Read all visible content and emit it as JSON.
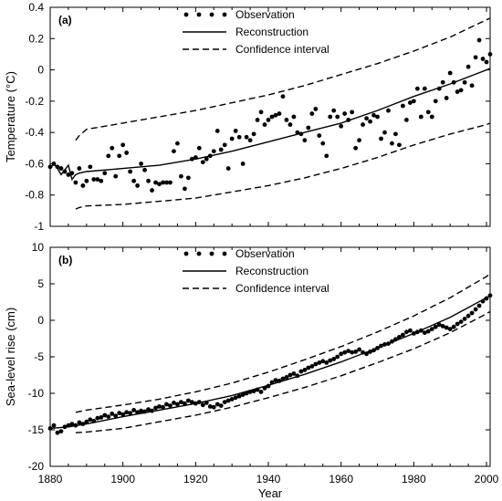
{
  "chart_data": [
    {
      "panel": "(a)",
      "type": "line",
      "ylabel": "Temperature (°C)",
      "xlabel": "",
      "xlim": [
        1880,
        2001
      ],
      "ylim": [
        -1,
        0.4
      ],
      "x_ticks": [
        1880,
        1900,
        1920,
        1940,
        1960,
        1980,
        2000
      ],
      "y_ticks": [
        -1,
        -0.8,
        -0.6,
        -0.4,
        -0.2,
        0,
        0.2,
        0.4
      ],
      "y_tick_labels": [
        "-1",
        "-0.8",
        "-0.6",
        "-0.4",
        "-0.2",
        "0",
        "0.2",
        "0.4"
      ],
      "grid": false,
      "legend_position": "top-center",
      "legend": {
        "observation": "Observation",
        "reconstruction": "Reconstruction",
        "confidence": "Confidence interval"
      },
      "series": [
        {
          "name": "Observation",
          "style": "dots",
          "x": [
            1880,
            1881,
            1882,
            1883,
            1884,
            1885,
            1886,
            1887,
            1888,
            1889,
            1890,
            1891,
            1892,
            1893,
            1894,
            1895,
            1896,
            1897,
            1898,
            1899,
            1900,
            1901,
            1902,
            1903,
            1904,
            1905,
            1906,
            1907,
            1908,
            1909,
            1910,
            1911,
            1912,
            1913,
            1914,
            1915,
            1916,
            1917,
            1918,
            1919,
            1920,
            1921,
            1922,
            1923,
            1924,
            1925,
            1926,
            1927,
            1928,
            1929,
            1930,
            1931,
            1932,
            1933,
            1934,
            1935,
            1936,
            1937,
            1938,
            1939,
            1940,
            1941,
            1942,
            1943,
            1944,
            1945,
            1946,
            1947,
            1948,
            1949,
            1950,
            1951,
            1952,
            1953,
            1954,
            1955,
            1956,
            1957,
            1958,
            1959,
            1960,
            1961,
            1962,
            1963,
            1964,
            1965,
            1966,
            1967,
            1968,
            1969,
            1970,
            1971,
            1972,
            1973,
            1974,
            1975,
            1976,
            1977,
            1978,
            1979,
            1980,
            1981,
            1982,
            1983,
            1984,
            1985,
            1986,
            1987,
            1988,
            1989,
            1990,
            1991,
            1992,
            1993,
            1994,
            1995,
            1996,
            1997,
            1998,
            1999,
            2000,
            2001
          ],
          "y": [
            -0.62,
            -0.6,
            -0.62,
            -0.63,
            -0.65,
            -0.67,
            -0.66,
            -0.72,
            -0.63,
            -0.74,
            -0.71,
            -0.62,
            -0.7,
            -0.7,
            -0.71,
            -0.66,
            -0.55,
            -0.5,
            -0.68,
            -0.55,
            -0.48,
            -0.53,
            -0.65,
            -0.71,
            -0.74,
            -0.6,
            -0.64,
            -0.71,
            -0.77,
            -0.72,
            -0.73,
            -0.72,
            -0.72,
            -0.72,
            -0.52,
            -0.47,
            -0.68,
            -0.76,
            -0.69,
            -0.57,
            -0.56,
            -0.5,
            -0.59,
            -0.57,
            -0.55,
            -0.52,
            -0.39,
            -0.51,
            -0.48,
            -0.63,
            -0.44,
            -0.39,
            -0.43,
            -0.6,
            -0.43,
            -0.45,
            -0.41,
            -0.32,
            -0.27,
            -0.35,
            -0.32,
            -0.3,
            -0.29,
            -0.28,
            -0.17,
            -0.32,
            -0.35,
            -0.3,
            -0.4,
            -0.41,
            -0.45,
            -0.37,
            -0.28,
            -0.25,
            -0.42,
            -0.47,
            -0.55,
            -0.3,
            -0.26,
            -0.3,
            -0.36,
            -0.28,
            -0.32,
            -0.27,
            -0.5,
            -0.45,
            -0.35,
            -0.31,
            -0.33,
            -0.29,
            -0.3,
            -0.44,
            -0.4,
            -0.26,
            -0.47,
            -0.41,
            -0.48,
            -0.23,
            -0.32,
            -0.21,
            -0.2,
            -0.12,
            -0.3,
            -0.12,
            -0.27,
            -0.3,
            -0.2,
            -0.12,
            -0.08,
            -0.18,
            -0.02,
            -0.08,
            -0.14,
            -0.13,
            -0.08,
            0.02,
            -0.1,
            0.08,
            0.19,
            0.07,
            0.05,
            0.1
          ]
        },
        {
          "name": "Reconstruction",
          "style": "solid",
          "x": [
            1880,
            1881,
            1882,
            1883,
            1884,
            1885,
            1886,
            1887,
            1888,
            1890,
            1900,
            1910,
            1920,
            1930,
            1940,
            1950,
            1960,
            1970,
            1980,
            1990,
            2000,
            2001
          ],
          "y": [
            -0.63,
            -0.6,
            -0.63,
            -0.67,
            -0.64,
            -0.61,
            -0.7,
            -0.67,
            -0.66,
            -0.65,
            -0.63,
            -0.61,
            -0.57,
            -0.52,
            -0.46,
            -0.4,
            -0.34,
            -0.26,
            -0.17,
            -0.09,
            0.0,
            0.01
          ]
        },
        {
          "name": "Confidence interval (upper)",
          "style": "dashed",
          "x": [
            1887,
            1888,
            1890,
            1900,
            1910,
            1920,
            1930,
            1940,
            1950,
            1960,
            1970,
            1980,
            1990,
            2000,
            2001
          ],
          "y": [
            -0.45,
            -0.42,
            -0.38,
            -0.34,
            -0.3,
            -0.26,
            -0.21,
            -0.16,
            -0.1,
            -0.03,
            0.04,
            0.12,
            0.21,
            0.32,
            0.33
          ]
        },
        {
          "name": "Confidence interval (lower)",
          "style": "dashed",
          "x": [
            1887,
            1888,
            1890,
            1900,
            1910,
            1920,
            1930,
            1940,
            1950,
            1960,
            1970,
            1980,
            1990,
            2000,
            2001
          ],
          "y": [
            -0.89,
            -0.88,
            -0.87,
            -0.86,
            -0.84,
            -0.82,
            -0.78,
            -0.74,
            -0.69,
            -0.63,
            -0.56,
            -0.48,
            -0.41,
            -0.35,
            -0.34
          ]
        }
      ]
    },
    {
      "panel": "(b)",
      "type": "line",
      "ylabel": "Sea-level rise (cm)",
      "xlabel": "Year",
      "xlim": [
        1880,
        2001
      ],
      "ylim": [
        -20,
        10
      ],
      "x_ticks": [
        1880,
        1900,
        1920,
        1940,
        1960,
        1980,
        2000
      ],
      "y_ticks": [
        -20,
        -15,
        -10,
        -5,
        0,
        5,
        10
      ],
      "y_tick_labels": [
        "-20",
        "-15",
        "-10",
        "-5",
        "0",
        "5",
        "10"
      ],
      "grid": false,
      "legend_position": "top-center",
      "legend": {
        "observation": "Observation",
        "reconstruction": "Reconstruction",
        "confidence": "Confidence interval"
      },
      "series": [
        {
          "name": "Observation",
          "style": "dots",
          "x": [
            1880,
            1881,
            1882,
            1883,
            1884,
            1885,
            1886,
            1887,
            1888,
            1889,
            1890,
            1891,
            1892,
            1893,
            1894,
            1895,
            1896,
            1897,
            1898,
            1899,
            1900,
            1901,
            1902,
            1903,
            1904,
            1905,
            1906,
            1907,
            1908,
            1909,
            1910,
            1911,
            1912,
            1913,
            1914,
            1915,
            1916,
            1917,
            1918,
            1919,
            1920,
            1921,
            1922,
            1923,
            1924,
            1925,
            1926,
            1927,
            1928,
            1929,
            1930,
            1931,
            1932,
            1933,
            1934,
            1935,
            1936,
            1937,
            1938,
            1939,
            1940,
            1941,
            1942,
            1943,
            1944,
            1945,
            1946,
            1947,
            1948,
            1949,
            1950,
            1951,
            1952,
            1953,
            1954,
            1955,
            1956,
            1957,
            1958,
            1959,
            1960,
            1961,
            1962,
            1963,
            1964,
            1965,
            1966,
            1967,
            1968,
            1969,
            1970,
            1971,
            1972,
            1973,
            1974,
            1975,
            1976,
            1977,
            1978,
            1979,
            1980,
            1981,
            1982,
            1983,
            1984,
            1985,
            1986,
            1987,
            1988,
            1989,
            1990,
            1991,
            1992,
            1993,
            1994,
            1995,
            1996,
            1997,
            1998,
            1999,
            2000,
            2001
          ],
          "y": [
            -14.8,
            -14.4,
            -15.4,
            -15.2,
            -14.6,
            -14.4,
            -14.2,
            -14.4,
            -14.0,
            -14.2,
            -13.9,
            -13.6,
            -13.8,
            -13.4,
            -13.3,
            -13.0,
            -13.2,
            -12.8,
            -13.1,
            -12.7,
            -12.9,
            -12.6,
            -12.7,
            -12.3,
            -12.6,
            -12.4,
            -12.5,
            -12.2,
            -12.4,
            -12.0,
            -11.8,
            -11.9,
            -11.5,
            -11.7,
            -11.3,
            -11.5,
            -11.2,
            -11.4,
            -11.0,
            -11.2,
            -11.4,
            -11.2,
            -11.6,
            -11.3,
            -11.8,
            -11.9,
            -11.5,
            -11.7,
            -11.2,
            -11.0,
            -10.8,
            -10.6,
            -10.4,
            -10.2,
            -10.0,
            -9.8,
            -9.7,
            -9.5,
            -9.8,
            -9.3,
            -9.0,
            -8.5,
            -8.2,
            -8.3,
            -8.0,
            -7.8,
            -7.5,
            -7.3,
            -7.6,
            -7.0,
            -6.8,
            -6.5,
            -6.3,
            -6.0,
            -5.8,
            -5.6,
            -5.8,
            -5.5,
            -5.3,
            -5.0,
            -4.6,
            -4.4,
            -4.2,
            -4.4,
            -4.3,
            -4.0,
            -4.4,
            -4.6,
            -4.3,
            -4.1,
            -3.8,
            -3.5,
            -3.3,
            -3.2,
            -2.9,
            -2.6,
            -2.3,
            -2.0,
            -1.6,
            -1.4,
            -1.8,
            -1.6,
            -1.4,
            -1.7,
            -1.5,
            -1.2,
            -0.9,
            -0.6,
            -0.8,
            -1.0,
            -1.2,
            -0.9,
            -0.5,
            -0.2,
            0.2,
            0.6,
            1.0,
            1.5,
            2.0,
            2.6,
            3.0,
            3.4
          ]
        },
        {
          "name": "Reconstruction",
          "style": "solid",
          "x": [
            1880,
            1885,
            1890,
            1900,
            1910,
            1920,
            1930,
            1940,
            1950,
            1960,
            1970,
            1980,
            1990,
            2000,
            2001
          ],
          "y": [
            -14.8,
            -14.6,
            -14.2,
            -13.2,
            -12.3,
            -11.4,
            -10.3,
            -8.9,
            -7.4,
            -5.7,
            -3.8,
            -1.8,
            0.4,
            3.1,
            3.4
          ]
        },
        {
          "name": "Confidence interval (upper)",
          "style": "dashed",
          "x": [
            1887,
            1890,
            1900,
            1910,
            1920,
            1930,
            1940,
            1950,
            1960,
            1970,
            1980,
            1990,
            2000,
            2001
          ],
          "y": [
            -12.6,
            -12.3,
            -11.6,
            -10.8,
            -9.8,
            -8.6,
            -7.1,
            -5.4,
            -3.6,
            -1.6,
            0.6,
            3.1,
            6.0,
            6.4
          ]
        },
        {
          "name": "Confidence interval (lower)",
          "style": "dashed",
          "x": [
            1887,
            1890,
            1900,
            1910,
            1920,
            1930,
            1940,
            1950,
            1960,
            1970,
            1980,
            1990,
            2000,
            2001
          ],
          "y": [
            -15.4,
            -15.3,
            -14.8,
            -13.9,
            -13.0,
            -11.9,
            -10.6,
            -9.2,
            -7.6,
            -5.8,
            -3.9,
            -1.7,
            0.9,
            1.2
          ]
        }
      ]
    }
  ]
}
